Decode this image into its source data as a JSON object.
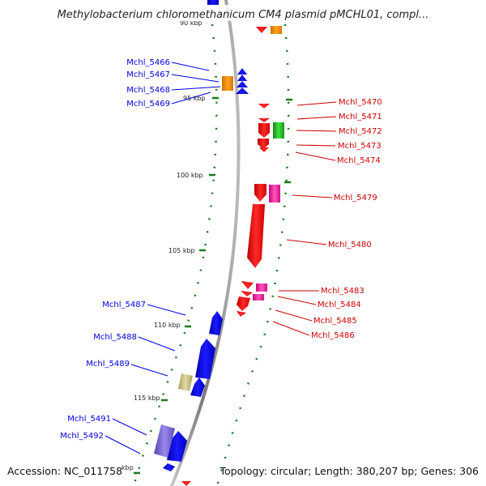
{
  "title": "Methylobacterium chloromethanicum CM4 plasmid pMCHL01, compl...",
  "footer": {
    "accession": "Accession: NC_011758",
    "topology": "Topology: circular; Length: 380,207 bp; Genes: 306"
  },
  "ticks": [
    {
      "label": "90 kbp"
    },
    {
      "label": "95 kbp"
    },
    {
      "label": "100 kbp"
    },
    {
      "label": "105 kbp"
    },
    {
      "label": "110 kbp"
    },
    {
      "label": "115 kbp"
    },
    {
      "label": "kbp"
    }
  ],
  "genes_left": [
    {
      "label": "Mchl_5466",
      "color": "#0000dd"
    },
    {
      "label": "Mchl_5467",
      "color": "#0000dd"
    },
    {
      "label": "Mchl_5468",
      "color": "#0000dd"
    },
    {
      "label": "Mchl_5469",
      "color": "#0000dd"
    },
    {
      "label": "Mchl_5487",
      "color": "#0000dd"
    },
    {
      "label": "Mchl_5488",
      "color": "#0000dd"
    },
    {
      "label": "Mchl_5489",
      "color": "#0000dd"
    },
    {
      "label": "Mchl_5491",
      "color": "#0000dd"
    },
    {
      "label": "Mchl_5492",
      "color": "#0000dd"
    }
  ],
  "genes_right": [
    {
      "label": "Mchl_5470",
      "color": "#cc0000"
    },
    {
      "label": "Mchl_5471",
      "color": "#cc0000"
    },
    {
      "label": "Mchl_5472",
      "color": "#cc0000"
    },
    {
      "label": "Mchl_5473",
      "color": "#cc0000"
    },
    {
      "label": "Mchl_5474",
      "color": "#cc0000"
    },
    {
      "label": "Mchl_5479",
      "color": "#cc0000"
    },
    {
      "label": "Mchl_5480",
      "color": "#cc0000"
    },
    {
      "label": "Mchl_5483",
      "color": "#cc0000"
    },
    {
      "label": "Mchl_5484",
      "color": "#cc0000"
    },
    {
      "label": "Mchl_5485",
      "color": "#cc0000"
    },
    {
      "label": "Mchl_5486",
      "color": "#cc0000"
    }
  ],
  "colors": {
    "forward_strand": "#0000ee",
    "reverse_strand": "#ee0000",
    "orange_feature": "#f08c00",
    "green_feature": "#22bb22",
    "pink_feature": "#ee2299",
    "olive_feature": "#c8bf80",
    "purple_feature": "#7766cc",
    "backbone": "#999999",
    "tick_marks": "#1a7a1a"
  }
}
